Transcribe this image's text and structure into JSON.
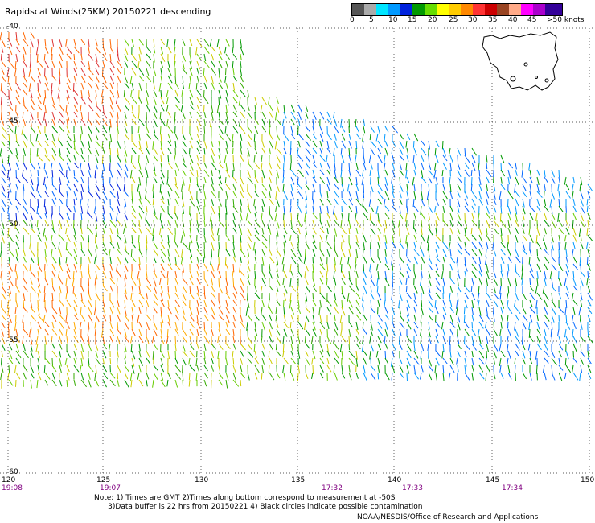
{
  "title": "Rapidscat Winds(25KM) 20150221 descending",
  "speed_scale": {
    "colors": [
      "#555555",
      "#aaaaaa",
      "#00e5ff",
      "#0099ff",
      "#0022dd",
      "#009900",
      "#66dd00",
      "#ffff00",
      "#ffcc00",
      "#ff8800",
      "#ff3333",
      "#cc0000",
      "#994422",
      "#ffaa88",
      "#ff00ff",
      "#aa00cc",
      "#330099"
    ],
    "labels": [
      "0",
      "5",
      "10",
      "15",
      "20",
      "25",
      "30",
      "35",
      "40",
      "45",
      ">50 knots"
    ]
  },
  "map": {
    "lat_labels": [
      "-40",
      "-45",
      "-50",
      "-55",
      "-60"
    ],
    "lon_labels": [
      "120",
      "125",
      "130",
      "135",
      "140",
      "145",
      "150"
    ],
    "grid": "dotted",
    "land": "Tasmania",
    "pass_times": [
      "19:08",
      "19:07",
      "17:32",
      "17:33",
      "17:34"
    ]
  },
  "note_lines": [
    "Note: 1) Times are GMT 2)Times along bottom correspond to measurement at -50S",
    "      3)Data buffer is 22 hrs from 20150221 4) Black circles indicate possible contamination"
  ],
  "credit": "NOAA/NESDIS/Office of Research and Applications"
}
